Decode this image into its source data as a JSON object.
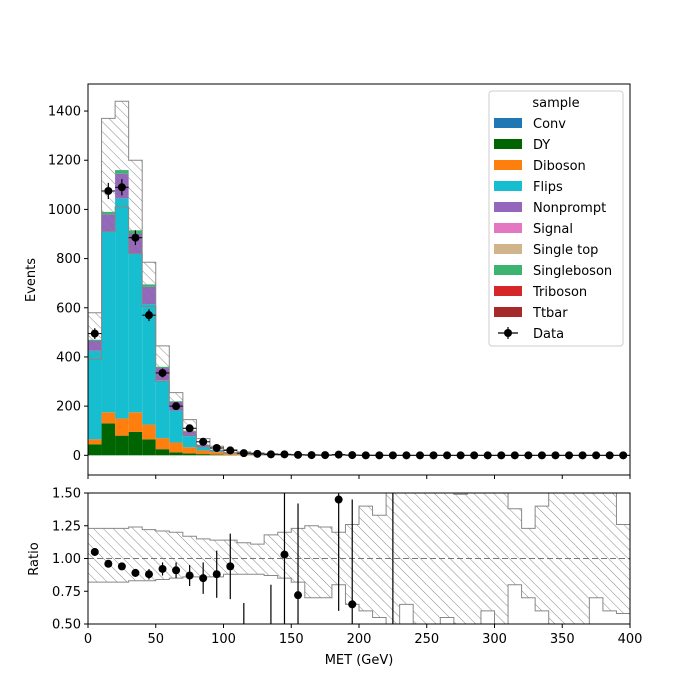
{
  "chart_data": [
    {
      "type": "bar",
      "stacked": true,
      "histogram": true,
      "xlabel": "",
      "ylabel": "Events",
      "xlim": [
        0,
        400
      ],
      "ylim": [
        -80,
        1510
      ],
      "bin_width": 10,
      "yticks": [
        0,
        200,
        400,
        600,
        800,
        1000,
        1200,
        1400
      ],
      "ytick_labels": [
        "0",
        "200",
        "400",
        "600",
        "800",
        "1000",
        "1200",
        "1400"
      ],
      "grid": false,
      "legend": {
        "title": "sample",
        "placement": "top-right",
        "entries": [
          "Conv",
          "DY",
          "Diboson",
          "Flips",
          "Nonprompt",
          "Signal",
          "Single top",
          "Singleboson",
          "Triboson",
          "Ttbar",
          "Data"
        ]
      },
      "colors": {
        "Conv": "#1f77b4",
        "DY": "#006400",
        "Diboson": "#ff7f0e",
        "Flips": "#17becf",
        "Nonprompt": "#9467bd",
        "Signal": "#e377c2",
        "Single top": "#d2b48c",
        "Singleboson": "#3cb371",
        "Triboson": "#d62728",
        "Ttbar": "#a52a2a",
        "Data": "#000000"
      },
      "series": [
        {
          "name": "Conv",
          "values": [
            0,
            0,
            0,
            0,
            0,
            0,
            0,
            0,
            0,
            0,
            0,
            0,
            0,
            0,
            0,
            0,
            0,
            0,
            0,
            0,
            0,
            0,
            0,
            0,
            0,
            0,
            0,
            0,
            0,
            0,
            0,
            0,
            0,
            0,
            0,
            0,
            0,
            0,
            0,
            0
          ]
        },
        {
          "name": "DY",
          "values": [
            45,
            130,
            80,
            95,
            65,
            25,
            12,
            8,
            5,
            3,
            2,
            1,
            1,
            1,
            0,
            0,
            0,
            0,
            0,
            0,
            0,
            0,
            0,
            0,
            0,
            0,
            0,
            0,
            0,
            0,
            0,
            0,
            0,
            0,
            0,
            0,
            0,
            0,
            0,
            0
          ]
        },
        {
          "name": "Diboson",
          "values": [
            20,
            45,
            70,
            80,
            60,
            45,
            40,
            25,
            15,
            10,
            6,
            4,
            3,
            2,
            1,
            1,
            1,
            0,
            0,
            0,
            0,
            0,
            0,
            0,
            0,
            0,
            0,
            0,
            0,
            0,
            0,
            0,
            0,
            0,
            0,
            0,
            0,
            0,
            0,
            0
          ]
        },
        {
          "name": "Flips",
          "values": [
            360,
            735,
            895,
            645,
            490,
            235,
            130,
            45,
            12,
            4,
            2,
            1,
            0,
            0,
            0,
            0,
            0,
            0,
            0,
            0,
            0,
            0,
            0,
            0,
            0,
            0,
            0,
            0,
            0,
            0,
            0,
            0,
            0,
            0,
            0,
            0,
            0,
            0,
            0,
            0
          ]
        },
        {
          "name": "Nonprompt",
          "values": [
            40,
            70,
            100,
            80,
            70,
            50,
            35,
            20,
            10,
            5,
            3,
            2,
            1,
            1,
            0,
            0,
            0,
            0,
            0,
            0,
            0,
            0,
            0,
            0,
            0,
            0,
            0,
            0,
            0,
            0,
            0,
            0,
            0,
            0,
            0,
            0,
            0,
            0,
            0,
            0
          ]
        },
        {
          "name": "Signal",
          "values": [
            0,
            0,
            0,
            0,
            0,
            0,
            0,
            0,
            0,
            0,
            0,
            0,
            0,
            0,
            0,
            0,
            0,
            0,
            0,
            0,
            0,
            0,
            0,
            0,
            0,
            0,
            0,
            0,
            0,
            0,
            0,
            0,
            0,
            0,
            0,
            0,
            0,
            0,
            0,
            0
          ]
        },
        {
          "name": "Single top",
          "values": [
            0,
            0,
            0,
            0,
            0,
            0,
            0,
            0,
            0,
            0,
            0,
            0,
            0,
            0,
            0,
            0,
            0,
            0,
            0,
            0,
            0,
            0,
            0,
            0,
            0,
            0,
            0,
            0,
            0,
            0,
            0,
            0,
            0,
            0,
            0,
            0,
            0,
            0,
            0,
            0
          ]
        },
        {
          "name": "Singleboson",
          "values": [
            5,
            10,
            15,
            15,
            10,
            5,
            3,
            2,
            1,
            0,
            0,
            0,
            0,
            0,
            0,
            0,
            0,
            0,
            0,
            0,
            0,
            0,
            0,
            0,
            0,
            0,
            0,
            0,
            0,
            0,
            0,
            0,
            0,
            0,
            0,
            0,
            0,
            0,
            0,
            0
          ]
        },
        {
          "name": "Triboson",
          "values": [
            0,
            0,
            0,
            0,
            0,
            0,
            0,
            0,
            0,
            0,
            0,
            0,
            0,
            0,
            0,
            0,
            0,
            0,
            0,
            0,
            0,
            0,
            0,
            0,
            0,
            0,
            0,
            0,
            0,
            0,
            0,
            0,
            0,
            0,
            0,
            0,
            0,
            0,
            0,
            0
          ]
        },
        {
          "name": "Ttbar",
          "values": [
            0,
            0,
            0,
            0,
            0,
            0,
            0,
            0,
            0,
            0,
            0,
            0,
            0,
            0,
            0,
            0,
            0,
            0,
            0,
            0,
            0,
            0,
            0,
            0,
            0,
            0,
            0,
            0,
            0,
            0,
            0,
            0,
            0,
            0,
            0,
            0,
            0,
            0,
            0,
            0
          ]
        }
      ],
      "uncertainty_band": {
        "low": [
          390,
          910,
          1010,
          820,
          605,
          300,
          200,
          85,
          35,
          18,
          10,
          6,
          4,
          3,
          1,
          1,
          1,
          0,
          0,
          0,
          0,
          0,
          0,
          0,
          0,
          0,
          0,
          0,
          0,
          0,
          0,
          0,
          0,
          0,
          0,
          0,
          0,
          0,
          0,
          0
        ],
        "high": [
          580,
          1370,
          1440,
          1200,
          785,
          445,
          255,
          145,
          68,
          37,
          23,
          14,
          10,
          7,
          4,
          3,
          3,
          2,
          1,
          1,
          1,
          1,
          0,
          0,
          0,
          0,
          0,
          0,
          0,
          0,
          0,
          0,
          0,
          0,
          0,
          0,
          0,
          0,
          0,
          0
        ]
      },
      "data_points": {
        "name": "Data",
        "x": [
          5,
          15,
          25,
          35,
          45,
          55,
          65,
          75,
          85,
          95,
          105,
          115,
          125,
          135,
          145,
          155,
          165,
          175,
          185,
          195,
          205,
          215,
          225,
          235,
          245,
          255,
          265,
          275,
          285,
          295,
          305,
          315,
          325,
          335,
          345,
          355,
          365,
          375,
          385,
          395
        ],
        "y": [
          495,
          1075,
          1090,
          885,
          570,
          335,
          200,
          110,
          55,
          30,
          20,
          9,
          6,
          4,
          4,
          2,
          1,
          1,
          3,
          1,
          0,
          0,
          0,
          0,
          0,
          0,
          0,
          0,
          0,
          0,
          0,
          0,
          0,
          0,
          0,
          0,
          0,
          0,
          0,
          0
        ],
        "yerr": [
          22,
          33,
          33,
          30,
          24,
          18,
          14,
          10,
          7,
          5,
          4,
          3,
          2.5,
          2,
          2,
          1.4,
          1,
          1,
          1.7,
          1,
          0,
          0,
          0,
          0,
          0,
          0,
          0,
          0,
          0,
          0,
          0,
          0,
          0,
          0,
          0,
          0,
          0,
          0,
          0,
          0
        ]
      }
    },
    {
      "type": "scatter",
      "xlabel": "MET (GeV)",
      "ylabel": "Ratio",
      "xlim": [
        0,
        400
      ],
      "ylim": [
        0.5,
        1.5
      ],
      "xticks": [
        0,
        50,
        100,
        150,
        200,
        250,
        300,
        350,
        400
      ],
      "xtick_labels": [
        "0",
        "50",
        "100",
        "150",
        "200",
        "250",
        "300",
        "350",
        "400"
      ],
      "yticks": [
        0.5,
        0.75,
        1.0,
        1.25,
        1.5
      ],
      "ytick_labels": [
        "0.50",
        "0.75",
        "1.00",
        "1.25",
        "1.50"
      ],
      "reference_line": 1.0,
      "grid": false,
      "band": {
        "low": [
          0.82,
          0.82,
          0.82,
          0.83,
          0.83,
          0.84,
          0.85,
          0.86,
          0.86,
          0.86,
          0.88,
          0.88,
          0.88,
          0.87,
          0.85,
          0.82,
          0.7,
          0.7,
          0.8,
          0.65,
          0.6,
          0.55,
          0.5,
          0.65,
          0.5,
          0.5,
          0.55,
          0.5,
          0.5,
          0.6,
          0.5,
          0.8,
          0.7,
          0.6,
          0.5,
          0.5,
          0.5,
          0.7,
          0.6,
          0.58
        ],
        "high": [
          1.23,
          1.23,
          1.23,
          1.24,
          1.22,
          1.21,
          1.2,
          1.17,
          1.15,
          1.14,
          1.14,
          1.12,
          1.11,
          1.18,
          1.2,
          1.23,
          1.25,
          1.24,
          1.2,
          1.26,
          1.4,
          1.33,
          1.5,
          1.5,
          1.5,
          1.5,
          1.5,
          1.49,
          1.5,
          1.5,
          1.5,
          1.38,
          1.23,
          1.4,
          1.5,
          1.5,
          1.5,
          1.5,
          1.5,
          1.26
        ]
      },
      "points": {
        "x": [
          5,
          15,
          25,
          35,
          45,
          55,
          65,
          75,
          85,
          95,
          105,
          145,
          155,
          185,
          195
        ],
        "y": [
          1.05,
          0.96,
          0.94,
          0.89,
          0.88,
          0.92,
          0.91,
          0.87,
          0.85,
          0.88,
          0.94,
          1.03,
          0.72,
          1.45,
          0.65
        ],
        "yerr": [
          0.03,
          0.02,
          0.02,
          0.03,
          0.04,
          0.05,
          0.06,
          0.08,
          0.12,
          0.18,
          0.25,
          0.6,
          0.7,
          0.85,
          0.8
        ]
      },
      "partial_error_bars": {
        "x": [
          115,
          135,
          225
        ],
        "top": [
          0.66,
          0.8,
          1.5
        ]
      }
    }
  ]
}
